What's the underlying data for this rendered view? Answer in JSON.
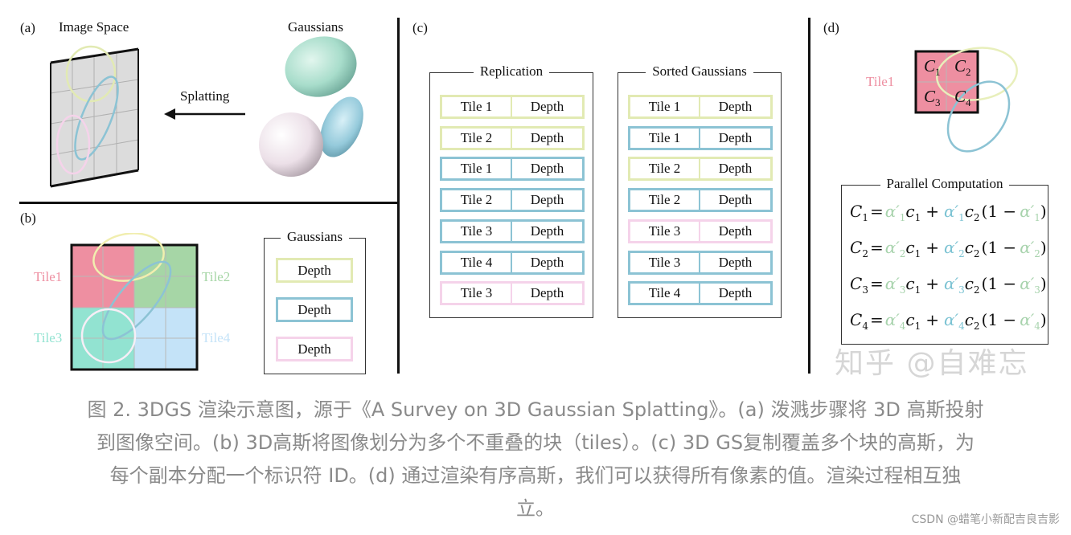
{
  "colors": {
    "yellow": "#e2eab3",
    "blue": "#8cc3d4",
    "pink": "#f5d3ea",
    "tile1": "#ee8fa1",
    "tile2": "#a6d6a6",
    "tile3": "#92e3d1",
    "tile4": "#c4e3f8",
    "alpha_green": "#a8d3ad",
    "alpha_blue": "#7cc3d3"
  },
  "panel_a": {
    "label": "(a)",
    "image_space": "Image Space",
    "gaussians": "Gaussians",
    "splatting": "Splatting"
  },
  "panel_b": {
    "label": "(b)",
    "tiles": [
      "Tile1",
      "Tile2",
      "Tile3",
      "Tile4"
    ],
    "gaussians_title": "Gaussians",
    "depths": [
      {
        "text": "Depth",
        "color": "yellow"
      },
      {
        "text": "Depth",
        "color": "blue"
      },
      {
        "text": "Depth",
        "color": "pink"
      }
    ]
  },
  "panel_c": {
    "label": "(c)",
    "replication": {
      "title": "Replication",
      "rows": [
        {
          "tile": "Tile 1",
          "depth": "Depth",
          "color": "yellow"
        },
        {
          "tile": "Tile 2",
          "depth": "Depth",
          "color": "yellow"
        },
        {
          "tile": "Tile 1",
          "depth": "Depth",
          "color": "blue"
        },
        {
          "tile": "Tile 2",
          "depth": "Depth",
          "color": "blue"
        },
        {
          "tile": "Tile 3",
          "depth": "Depth",
          "color": "blue"
        },
        {
          "tile": "Tile 4",
          "depth": "Depth",
          "color": "blue"
        },
        {
          "tile": "Tile 3",
          "depth": "Depth",
          "color": "pink"
        }
      ]
    },
    "sorted": {
      "title": "Sorted Gaussians",
      "rows": [
        {
          "tile": "Tile 1",
          "depth": "Depth",
          "color": "yellow"
        },
        {
          "tile": "Tile 1",
          "depth": "Depth",
          "color": "blue"
        },
        {
          "tile": "Tile 2",
          "depth": "Depth",
          "color": "yellow"
        },
        {
          "tile": "Tile 2",
          "depth": "Depth",
          "color": "blue"
        },
        {
          "tile": "Tile 3",
          "depth": "Depth",
          "color": "pink"
        },
        {
          "tile": "Tile 3",
          "depth": "Depth",
          "color": "blue"
        },
        {
          "tile": "Tile 4",
          "depth": "Depth",
          "color": "blue"
        }
      ]
    }
  },
  "panel_d": {
    "label": "(d)",
    "tile": "Tile1",
    "cells": [
      "C",
      "C",
      "C",
      "C"
    ],
    "cell_subs": [
      "1",
      "2",
      "3",
      "4"
    ],
    "parallel_title": "Parallel Computation",
    "equations": [
      "1",
      "2",
      "3",
      "4"
    ],
    "eq_parts": {
      "C": "C",
      "eq": "=",
      "alpha": "α′",
      "c1": "c",
      "c2": "c",
      "plus": "+",
      "open": "(1 −",
      "close": ")"
    }
  },
  "watermark": "知乎 @自难忘",
  "caption": {
    "lines": [
      "图 2. 3DGS 渲染示意图，源于《A Survey on 3D Gaussian Splatting》。(a) 泼溅步骤将 3D 高斯投射",
      "到图像空间。(b) 3D高斯将图像划分为多个不重叠的块（tiles）。(c) 3D GS复制覆盖多个块的高斯，为",
      "每个副本分配一个标识符 ID。(d) 通过渲染有序高斯，我们可以获得所有像素的值。渲染过程相互独",
      "立。"
    ]
  },
  "csdn": "CSDN @蜡笔小新配吉良吉影"
}
